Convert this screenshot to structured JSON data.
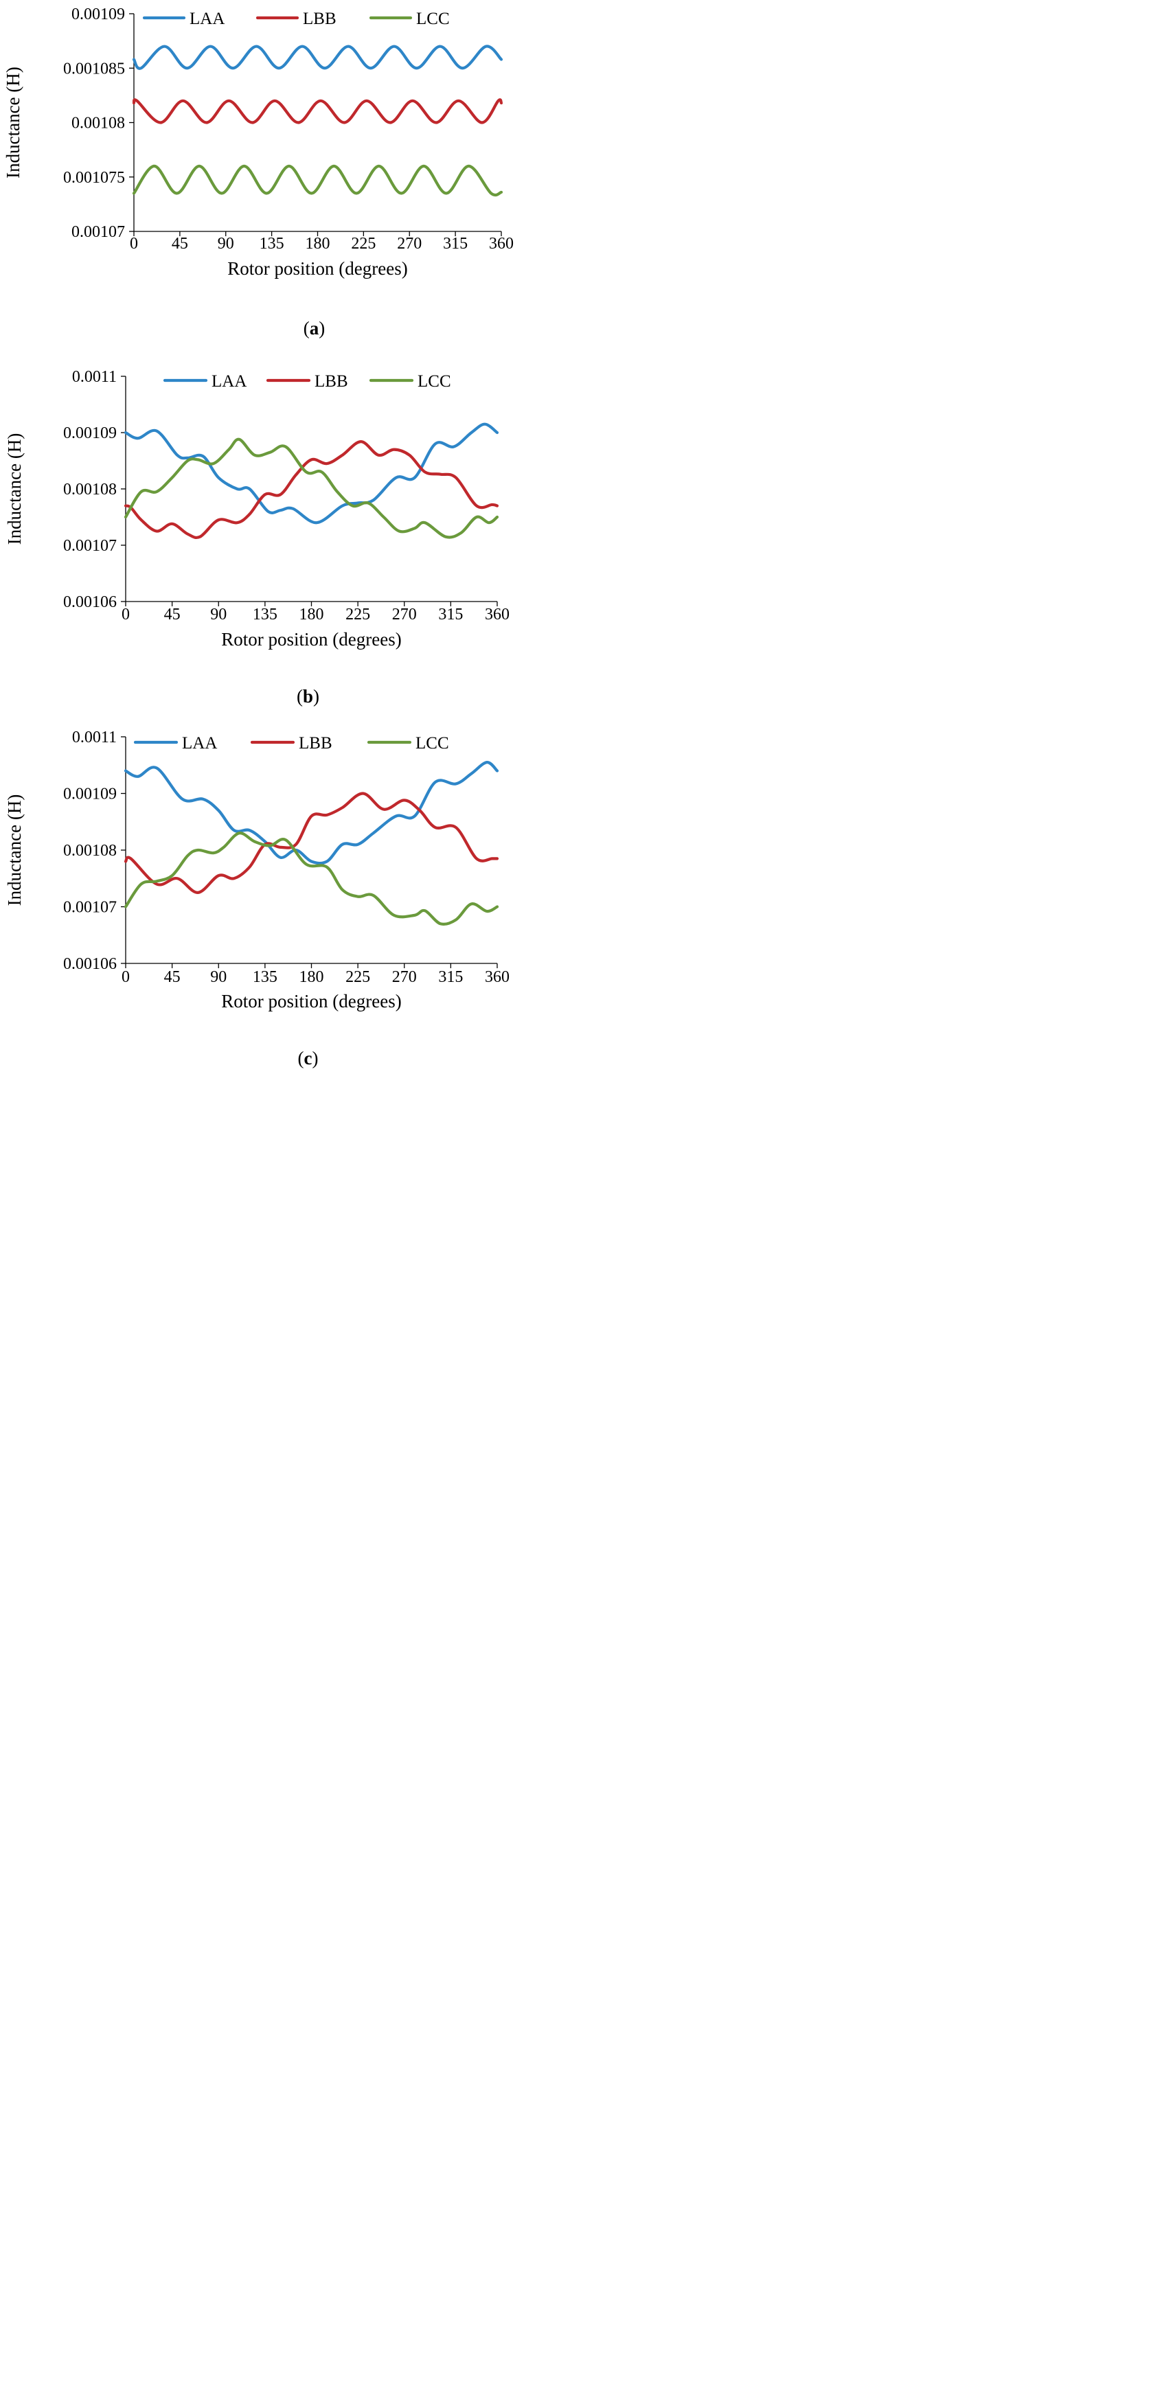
{
  "chart_data": [
    {
      "type": "line",
      "panel": "a",
      "caption": {
        "open": "(",
        "letter": "a",
        "close": ")"
      },
      "xlabel": "Rotor position (degrees)",
      "ylabel": "Inductance (H)",
      "xlim": [
        0,
        360
      ],
      "ylim": [
        0.00107,
        0.00109
      ],
      "xticks": [
        0,
        45,
        90,
        135,
        180,
        225,
        270,
        315,
        360
      ],
      "yticks": [
        "0.00107",
        "0.001075",
        "0.00108",
        "0.001085",
        "0.00109"
      ],
      "grid": false,
      "legend": "top",
      "series": [
        {
          "name": "LAA",
          "color": "#2e86c8",
          "x": [
            0,
            7,
            30,
            52,
            75,
            97,
            120,
            142,
            165,
            187,
            210,
            232,
            255,
            277,
            300,
            322,
            345,
            360
          ],
          "values": [
            0.0010858,
            0.001085,
            0.001087,
            0.001085,
            0.001087,
            0.001085,
            0.001087,
            0.001085,
            0.001087,
            0.001085,
            0.001087,
            0.001085,
            0.001087,
            0.001085,
            0.001087,
            0.001085,
            0.001087,
            0.0010858
          ]
        },
        {
          "name": "LBB",
          "color": "#c0282c",
          "x": [
            0,
            3,
            26,
            48,
            71,
            93,
            116,
            138,
            161,
            183,
            206,
            228,
            251,
            273,
            296,
            318,
            341,
            357,
            360
          ],
          "values": [
            0.0010818,
            0.001082,
            0.00108,
            0.001082,
            0.00108,
            0.001082,
            0.00108,
            0.001082,
            0.00108,
            0.001082,
            0.00108,
            0.001082,
            0.00108,
            0.001082,
            0.00108,
            0.001082,
            0.00108,
            0.001082,
            0.0010818
          ]
        },
        {
          "name": "LCC",
          "color": "#6a9a3c",
          "x": [
            0,
            20,
            42,
            64,
            86,
            108,
            130,
            152,
            174,
            196,
            218,
            240,
            262,
            284,
            306,
            328,
            350,
            360
          ],
          "values": [
            0.0010735,
            0.001076,
            0.0010735,
            0.001076,
            0.0010735,
            0.001076,
            0.0010735,
            0.001076,
            0.0010735,
            0.001076,
            0.0010735,
            0.001076,
            0.0010735,
            0.001076,
            0.0010735,
            0.001076,
            0.0010735,
            0.0010736
          ]
        }
      ]
    },
    {
      "type": "line",
      "panel": "b",
      "caption": {
        "open": "(",
        "letter": "b",
        "close": ")"
      },
      "xlabel": "Rotor position (degrees)",
      "ylabel": "Inductance (H)",
      "xlim": [
        0,
        360
      ],
      "ylim": [
        0.00106,
        0.0011
      ],
      "xticks": [
        0,
        45,
        90,
        135,
        180,
        225,
        270,
        315,
        360
      ],
      "yticks": [
        "0.00106",
        "0.00107",
        "0.00108",
        "0.00109",
        "0.0011"
      ],
      "grid": false,
      "legend": "top",
      "series": [
        {
          "name": "LAA",
          "color": "#2e86c8",
          "x": [
            0,
            12,
            30,
            50,
            60,
            75,
            90,
            108,
            120,
            138,
            150,
            162,
            185,
            210,
            225,
            240,
            262,
            280,
            300,
            318,
            335,
            348,
            360
          ],
          "values": [
            0.00109,
            0.001089,
            0.0010903,
            0.001086,
            0.0010855,
            0.0010858,
            0.001082,
            0.00108,
            0.00108,
            0.001076,
            0.0010762,
            0.0010765,
            0.001074,
            0.001077,
            0.0010775,
            0.001078,
            0.001082,
            0.001082,
            0.001088,
            0.0010875,
            0.00109,
            0.0010915,
            0.00109
          ]
        },
        {
          "name": "LBB",
          "color": "#c0282c",
          "x": [
            0,
            5,
            15,
            30,
            45,
            60,
            72,
            90,
            108,
            120,
            135,
            150,
            165,
            180,
            195,
            210,
            228,
            245,
            260,
            275,
            290,
            305,
            320,
            340,
            355,
            360
          ],
          "values": [
            0.001077,
            0.0010767,
            0.0010745,
            0.0010725,
            0.0010738,
            0.001072,
            0.0010715,
            0.0010745,
            0.001074,
            0.0010755,
            0.001079,
            0.001079,
            0.0010825,
            0.0010852,
            0.0010845,
            0.001086,
            0.0010884,
            0.001086,
            0.001087,
            0.001086,
            0.001083,
            0.0010826,
            0.001082,
            0.001077,
            0.0010772,
            0.001077
          ]
        },
        {
          "name": "LCC",
          "color": "#6a9a3c",
          "x": [
            0,
            15,
            30,
            45,
            60,
            70,
            85,
            100,
            110,
            125,
            140,
            155,
            175,
            190,
            205,
            220,
            235,
            250,
            265,
            280,
            290,
            310,
            325,
            340,
            352,
            360
          ],
          "values": [
            0.001075,
            0.0010795,
            0.0010795,
            0.001082,
            0.001085,
            0.0010852,
            0.0010845,
            0.001087,
            0.0010888,
            0.001086,
            0.0010865,
            0.0010875,
            0.001083,
            0.001083,
            0.0010795,
            0.001077,
            0.0010775,
            0.001075,
            0.0010725,
            0.001073,
            0.001074,
            0.0010715,
            0.0010722,
            0.001075,
            0.001074,
            0.001075
          ]
        }
      ]
    },
    {
      "type": "line",
      "panel": "c",
      "caption": {
        "open": "(",
        "letter": "c",
        "close": ")"
      },
      "xlabel": "Rotor position (degrees)",
      "ylabel": "Inductance (H)",
      "xlim": [
        0,
        360
      ],
      "ylim": [
        0.00106,
        0.0011
      ],
      "xticks": [
        0,
        45,
        90,
        135,
        180,
        225,
        270,
        315,
        360
      ],
      "yticks": [
        "0.00106",
        "0.00107",
        "0.00108",
        "0.00109",
        "0.0011"
      ],
      "grid": false,
      "legend": "top",
      "series": [
        {
          "name": "LAA",
          "color": "#2e86c8",
          "x": [
            0,
            12,
            30,
            55,
            75,
            90,
            105,
            120,
            135,
            150,
            165,
            180,
            195,
            210,
            225,
            240,
            262,
            280,
            300,
            320,
            335,
            350,
            360
          ],
          "values": [
            0.001094,
            0.001093,
            0.0010945,
            0.001089,
            0.001089,
            0.001087,
            0.0010835,
            0.0010835,
            0.0010815,
            0.0010787,
            0.00108,
            0.001078,
            0.001078,
            0.001081,
            0.001081,
            0.001083,
            0.001086,
            0.001086,
            0.001092,
            0.0010917,
            0.0010935,
            0.0010955,
            0.001094
          ]
        },
        {
          "name": "LBB",
          "color": "#c0282c",
          "x": [
            0,
            5,
            30,
            50,
            70,
            90,
            105,
            120,
            135,
            150,
            165,
            180,
            195,
            210,
            230,
            250,
            270,
            285,
            300,
            320,
            340,
            355,
            360
          ],
          "values": [
            0.001078,
            0.0010785,
            0.001074,
            0.001075,
            0.0010725,
            0.0010755,
            0.001075,
            0.001077,
            0.001081,
            0.0010805,
            0.001081,
            0.001086,
            0.0010862,
            0.0010875,
            0.00109,
            0.0010872,
            0.0010888,
            0.001087,
            0.001084,
            0.001084,
            0.0010785,
            0.0010785,
            0.0010785
          ]
        },
        {
          "name": "LCC",
          "color": "#6a9a3c",
          "x": [
            0,
            15,
            30,
            45,
            60,
            70,
            85,
            95,
            110,
            125,
            140,
            155,
            175,
            195,
            210,
            225,
            240,
            260,
            280,
            290,
            305,
            320,
            335,
            350,
            360
          ],
          "values": [
            0.00107,
            0.001074,
            0.0010745,
            0.0010755,
            0.001079,
            0.00108,
            0.0010795,
            0.0010805,
            0.001083,
            0.0010815,
            0.0010808,
            0.0010818,
            0.0010775,
            0.001077,
            0.001073,
            0.0010718,
            0.001072,
            0.0010685,
            0.0010685,
            0.0010693,
            0.001067,
            0.0010677,
            0.0010705,
            0.0010692,
            0.00107
          ]
        }
      ]
    }
  ]
}
